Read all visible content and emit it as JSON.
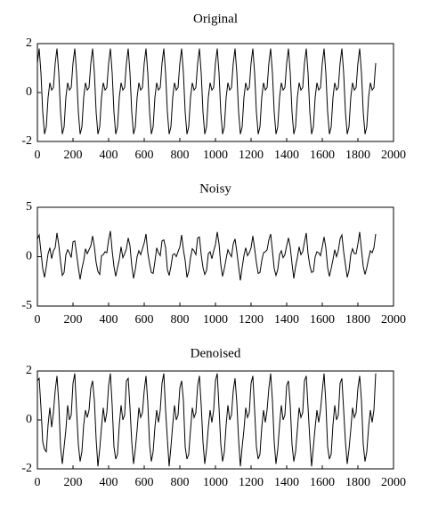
{
  "chart_data": [
    {
      "type": "line",
      "title": "Original",
      "color": "#000000",
      "xlim": [
        0,
        2000
      ],
      "xticks": [
        0,
        200,
        400,
        600,
        800,
        1000,
        1200,
        1400,
        1600,
        1800,
        2000
      ],
      "ylim": [
        -2,
        2
      ],
      "yticks": [
        -2,
        0,
        2
      ],
      "x": [
        0,
        10,
        20,
        30,
        40,
        50,
        60,
        70,
        80,
        90,
        100,
        110,
        120,
        130,
        140,
        150,
        160,
        170,
        180,
        190,
        200,
        210,
        220,
        230,
        240,
        250,
        260,
        270,
        280,
        290,
        300,
        310,
        320,
        330,
        340,
        350,
        360,
        370,
        380,
        390,
        400,
        410,
        420,
        430,
        440,
        450,
        460,
        470,
        480,
        490,
        500,
        510,
        520,
        530,
        540,
        550,
        560,
        570,
        580,
        590,
        600,
        610,
        620,
        630,
        640,
        650,
        660,
        670,
        680,
        690,
        700,
        710,
        720,
        730,
        740,
        750,
        760,
        770,
        780,
        790,
        800,
        810,
        820,
        830,
        840,
        850,
        860,
        870,
        880,
        890,
        900,
        910,
        920,
        930,
        940,
        950,
        960,
        970,
        980,
        990,
        1000,
        1010,
        1020,
        1030,
        1040,
        1050,
        1060,
        1070,
        1080,
        1090,
        1100,
        1110,
        1120,
        1130,
        1140,
        1150,
        1160,
        1170,
        1180,
        1190,
        1200,
        1210,
        1220,
        1230,
        1240,
        1250,
        1260,
        1270,
        1280,
        1290,
        1300,
        1310,
        1320,
        1330,
        1340,
        1350,
        1360,
        1370,
        1380,
        1390,
        1400,
        1410,
        1420,
        1430,
        1440,
        1450,
        1460,
        1470,
        1480,
        1490,
        1500,
        1510,
        1520,
        1530,
        1540,
        1550,
        1560,
        1570,
        1580,
        1590,
        1600,
        1610,
        1620,
        1630,
        1640,
        1650,
        1660,
        1670,
        1680,
        1690,
        1700,
        1710,
        1720,
        1730,
        1740,
        1750,
        1760,
        1770,
        1780,
        1790,
        1800,
        1810,
        1820,
        1830,
        1840,
        1850,
        1860,
        1870,
        1880,
        1890,
        1900
      ],
      "values": [
        1.2,
        1.8,
        0.8,
        -0.8,
        -1.7,
        -1.4,
        -0.2,
        0.4,
        0.1,
        0.2,
        1.2,
        1.8,
        0.8,
        -0.8,
        -1.7,
        -1.4,
        -0.2,
        0.4,
        0.1,
        0.2,
        1.2,
        1.8,
        0.8,
        -0.8,
        -1.7,
        -1.4,
        -0.2,
        0.4,
        0.1,
        0.2,
        1.2,
        1.8,
        0.8,
        -0.8,
        -1.7,
        -1.4,
        -0.2,
        0.4,
        0.1,
        0.2,
        1.2,
        1.8,
        0.8,
        -0.8,
        -1.7,
        -1.4,
        -0.2,
        0.4,
        0.1,
        0.2,
        1.2,
        1.8,
        0.8,
        -0.8,
        -1.7,
        -1.4,
        -0.2,
        0.4,
        0.1,
        0.2,
        1.2,
        1.8,
        0.8,
        -0.8,
        -1.7,
        -1.4,
        -0.2,
        0.4,
        0.1,
        0.2,
        1.2,
        1.8,
        0.8,
        -0.8,
        -1.7,
        -1.4,
        -0.2,
        0.4,
        0.1,
        0.2,
        1.2,
        1.8,
        0.8,
        -0.8,
        -1.7,
        -1.4,
        -0.2,
        0.4,
        0.1,
        0.2,
        1.2,
        1.8,
        0.8,
        -0.8,
        -1.7,
        -1.4,
        -0.2,
        0.4,
        0.1,
        0.2,
        1.2,
        1.8,
        0.8,
        -0.8,
        -1.7,
        -1.4,
        -0.2,
        0.4,
        0.1,
        0.2,
        1.2,
        1.8,
        0.8,
        -0.8,
        -1.7,
        -1.4,
        -0.2,
        0.4,
        0.1,
        0.2,
        1.2,
        1.8,
        0.8,
        -0.8,
        -1.7,
        -1.4,
        -0.2,
        0.4,
        0.1,
        0.2,
        1.2,
        1.8,
        0.8,
        -0.8,
        -1.7,
        -1.4,
        -0.2,
        0.4,
        0.1,
        0.2,
        1.2,
        1.8,
        0.8,
        -0.8,
        -1.7,
        -1.4,
        -0.2,
        0.4,
        0.1,
        0.2,
        1.2,
        1.8,
        0.8,
        -0.8,
        -1.7,
        -1.4,
        -0.2,
        0.4,
        0.1,
        0.2,
        1.2,
        1.8,
        0.8,
        -0.8,
        -1.7,
        -1.4,
        -0.2,
        0.4,
        0.1,
        0.2,
        1.2,
        1.8,
        0.8,
        -0.8,
        -1.7,
        -1.4,
        -0.2,
        0.4,
        0.1,
        0.2,
        1.2,
        1.8,
        0.8,
        -0.8,
        -1.7,
        -1.4,
        -0.2,
        0.4,
        0.1,
        0.2,
        1.2
      ]
    },
    {
      "type": "line",
      "title": "Noisy",
      "color": "#000000",
      "xlim": [
        0,
        2000
      ],
      "xticks": [
        0,
        200,
        400,
        600,
        800,
        1000,
        1200,
        1400,
        1600,
        1800,
        2000
      ],
      "ylim": [
        -5,
        5
      ],
      "yticks": [
        -5,
        0,
        5
      ],
      "x": [
        0,
        10,
        20,
        30,
        40,
        50,
        60,
        70,
        80,
        90,
        100,
        110,
        120,
        130,
        140,
        150,
        160,
        170,
        180,
        190,
        200,
        210,
        220,
        230,
        240,
        250,
        260,
        270,
        280,
        290,
        300,
        310,
        320,
        330,
        340,
        350,
        360,
        370,
        380,
        390,
        400,
        410,
        420,
        430,
        440,
        450,
        460,
        470,
        480,
        490,
        500,
        510,
        520,
        530,
        540,
        550,
        560,
        570,
        580,
        590,
        600,
        610,
        620,
        630,
        640,
        650,
        660,
        670,
        680,
        690,
        700,
        710,
        720,
        730,
        740,
        750,
        760,
        770,
        780,
        790,
        800,
        810,
        820,
        830,
        840,
        850,
        860,
        870,
        880,
        890,
        900,
        910,
        920,
        930,
        940,
        950,
        960,
        970,
        980,
        990,
        1000,
        1010,
        1020,
        1030,
        1040,
        1050,
        1060,
        1070,
        1080,
        1090,
        1100,
        1110,
        1120,
        1130,
        1140,
        1150,
        1160,
        1170,
        1180,
        1190,
        1200,
        1210,
        1220,
        1230,
        1240,
        1250,
        1260,
        1270,
        1280,
        1290,
        1300,
        1310,
        1320,
        1330,
        1340,
        1350,
        1360,
        1370,
        1380,
        1390,
        1400,
        1410,
        1420,
        1430,
        1440,
        1450,
        1460,
        1470,
        1480,
        1490,
        1500,
        1510,
        1520,
        1530,
        1540,
        1550,
        1560,
        1570,
        1580,
        1590,
        1600,
        1610,
        1620,
        1630,
        1640,
        1650,
        1660,
        1670,
        1680,
        1690,
        1700,
        1710,
        1720,
        1730,
        1740,
        1750,
        1760,
        1770,
        1780,
        1790,
        1800,
        1810,
        1820,
        1830,
        1840,
        1850,
        1860,
        1870,
        1880,
        1890,
        1900
      ],
      "values": [
        1.8,
        2.2,
        0.5,
        -1.2,
        -2.1,
        -1.0,
        0.3,
        0.9,
        -0.2,
        0.6,
        0.9,
        2.4,
        1.2,
        -0.5,
        -1.9,
        -1.6,
        0.2,
        0.7,
        0.4,
        -0.1,
        1.5,
        1.6,
        0.3,
        -1.1,
        -2.3,
        -1.2,
        -0.4,
        0.8,
        0.3,
        0.7,
        1.1,
        2.1,
        1.0,
        -0.6,
        -1.5,
        -1.8,
        0.1,
        0.2,
        0.5,
        0.4,
        1.7,
        2.6,
        0.6,
        -1.0,
        -2.0,
        -1.1,
        -0.3,
        1.0,
        -0.1,
        0.3,
        0.8,
        1.9,
        1.1,
        -0.9,
        -2.2,
        -1.3,
        0.0,
        0.6,
        0.2,
        0.8,
        1.4,
        2.3,
        0.4,
        -0.7,
        -1.6,
        -1.7,
        -0.5,
        0.9,
        0.4,
        0.1,
        1.6,
        1.7,
        0.9,
        -1.3,
        -1.9,
        -1.0,
        0.2,
        0.3,
        0.0,
        0.5,
        1.0,
        2.2,
        0.7,
        -0.4,
        -2.1,
        -1.5,
        -0.1,
        0.8,
        0.6,
        0.2,
        1.9,
        2.0,
        0.2,
        -1.1,
        -1.8,
        -1.4,
        0.3,
        0.5,
        -0.2,
        0.6,
        1.2,
        2.5,
        1.3,
        -0.8,
        -2.0,
        -1.2,
        -0.2,
        0.7,
        0.3,
        0.0,
        1.3,
        1.8,
        0.5,
        -1.0,
        -2.4,
        -1.1,
        0.1,
        0.9,
        0.1,
        0.4,
        0.9,
        2.1,
        0.8,
        -0.6,
        -1.7,
        -1.6,
        -0.4,
        0.4,
        0.5,
        0.7,
        1.7,
        2.3,
        0.6,
        -1.2,
        -1.9,
        -1.3,
        0.2,
        0.6,
        -0.1,
        0.2,
        1.1,
        1.9,
        1.0,
        -0.7,
        -2.2,
        -1.0,
        -0.1,
        1.0,
        0.2,
        0.5,
        1.5,
        2.4,
        0.3,
        -0.9,
        -1.6,
        -1.5,
        0.0,
        0.5,
        0.4,
        0.1,
        1.0,
        2.0,
        0.9,
        -1.1,
        -2.0,
        -1.2,
        -0.3,
        0.7,
        0.0,
        0.6,
        1.8,
        2.2,
        0.5,
        -0.8,
        -2.1,
        -1.4,
        0.2,
        0.8,
        0.3,
        0.3,
        1.3,
        2.5,
        0.7,
        -1.0,
        -1.8,
        -1.1,
        -0.2,
        0.6,
        0.4,
        0.9,
        2.3
      ]
    },
    {
      "type": "line",
      "title": "Denoised",
      "color": "#000000",
      "xlim": [
        0,
        2000
      ],
      "xticks": [
        0,
        200,
        400,
        600,
        800,
        1000,
        1200,
        1400,
        1600,
        1800,
        2000
      ],
      "ylim": [
        -2,
        2
      ],
      "yticks": [
        -2,
        0,
        2
      ],
      "x": [
        0,
        10,
        20,
        30,
        40,
        50,
        60,
        70,
        80,
        90,
        100,
        110,
        120,
        130,
        140,
        150,
        160,
        170,
        180,
        190,
        200,
        210,
        220,
        230,
        240,
        250,
        260,
        270,
        280,
        290,
        300,
        310,
        320,
        330,
        340,
        350,
        360,
        370,
        380,
        390,
        400,
        410,
        420,
        430,
        440,
        450,
        460,
        470,
        480,
        490,
        500,
        510,
        520,
        530,
        540,
        550,
        560,
        570,
        580,
        590,
        600,
        610,
        620,
        630,
        640,
        650,
        660,
        670,
        680,
        690,
        700,
        710,
        720,
        730,
        740,
        750,
        760,
        770,
        780,
        790,
        800,
        810,
        820,
        830,
        840,
        850,
        860,
        870,
        880,
        890,
        900,
        910,
        920,
        930,
        940,
        950,
        960,
        970,
        980,
        990,
        1000,
        1010,
        1020,
        1030,
        1040,
        1050,
        1060,
        1070,
        1080,
        1090,
        1100,
        1110,
        1120,
        1130,
        1140,
        1150,
        1160,
        1170,
        1180,
        1190,
        1200,
        1210,
        1220,
        1230,
        1240,
        1250,
        1260,
        1270,
        1280,
        1290,
        1300,
        1310,
        1320,
        1330,
        1340,
        1350,
        1360,
        1370,
        1380,
        1390,
        1400,
        1410,
        1420,
        1430,
        1440,
        1450,
        1460,
        1470,
        1480,
        1490,
        1500,
        1510,
        1520,
        1530,
        1540,
        1550,
        1560,
        1570,
        1580,
        1590,
        1600,
        1610,
        1620,
        1630,
        1640,
        1650,
        1660,
        1670,
        1680,
        1690,
        1700,
        1710,
        1720,
        1730,
        1740,
        1750,
        1760,
        1770,
        1780,
        1790,
        1800,
        1810,
        1820,
        1830,
        1840,
        1850,
        1860,
        1870,
        1880,
        1890,
        1900
      ],
      "values": [
        1.6,
        1.7,
        0.5,
        -0.9,
        -1.2,
        -1.3,
        -0.2,
        0.5,
        -0.3,
        0.3,
        1.2,
        1.8,
        0.7,
        -1.1,
        -1.8,
        -1.1,
        -0.4,
        0.6,
        0.0,
        0.2,
        1.5,
        1.9,
        0.4,
        -1.0,
        -1.7,
        -1.3,
        -0.2,
        0.4,
        0.1,
        0.4,
        1.3,
        1.6,
        0.8,
        -0.8,
        -1.9,
        -1.2,
        -0.3,
        0.5,
        -0.1,
        0.3,
        1.4,
        1.9,
        0.6,
        -1.1,
        -1.6,
        -1.4,
        -0.2,
        0.6,
        0.0,
        0.2,
        1.6,
        1.7,
        0.5,
        -0.9,
        -1.8,
        -1.2,
        -0.4,
        0.5,
        0.1,
        0.3,
        1.2,
        1.8,
        0.7,
        -1.0,
        -1.7,
        -1.3,
        -0.3,
        0.4,
        -0.1,
        0.4,
        1.5,
        1.9,
        0.4,
        -0.8,
        -1.9,
        -1.1,
        -0.2,
        0.6,
        0.0,
        0.2,
        1.3,
        1.6,
        0.8,
        -1.1,
        -1.6,
        -1.4,
        -0.4,
        0.5,
        0.1,
        0.3,
        1.4,
        1.8,
        0.6,
        -0.9,
        -1.8,
        -1.2,
        -0.3,
        0.4,
        -0.1,
        0.4,
        1.6,
        1.9,
        0.5,
        -1.0,
        -1.7,
        -1.3,
        -0.2,
        0.6,
        0.0,
        0.2,
        1.2,
        1.7,
        0.7,
        -0.8,
        -1.9,
        -1.1,
        -0.4,
        0.5,
        0.1,
        0.3,
        1.5,
        1.8,
        0.4,
        -1.1,
        -1.6,
        -1.4,
        -0.3,
        0.4,
        -0.1,
        0.4,
        1.3,
        1.9,
        0.8,
        -0.9,
        -1.8,
        -1.2,
        -0.2,
        0.6,
        0.0,
        0.2,
        1.4,
        1.6,
        0.6,
        -1.0,
        -1.7,
        -1.3,
        -0.4,
        0.5,
        0.1,
        0.3,
        1.6,
        1.8,
        0.5,
        -0.8,
        -1.9,
        -1.1,
        -0.3,
        0.4,
        -0.1,
        0.4,
        1.2,
        1.9,
        0.7,
        -1.1,
        -1.6,
        -1.4,
        -0.2,
        0.6,
        0.0,
        0.2,
        1.5,
        1.7,
        0.4,
        -0.9,
        -1.8,
        -1.2,
        -0.4,
        0.5,
        0.1,
        0.3,
        1.3,
        1.8,
        0.8,
        -1.0,
        -1.7,
        -1.3,
        -0.3,
        0.4,
        -0.1,
        0.4,
        1.9
      ]
    }
  ]
}
